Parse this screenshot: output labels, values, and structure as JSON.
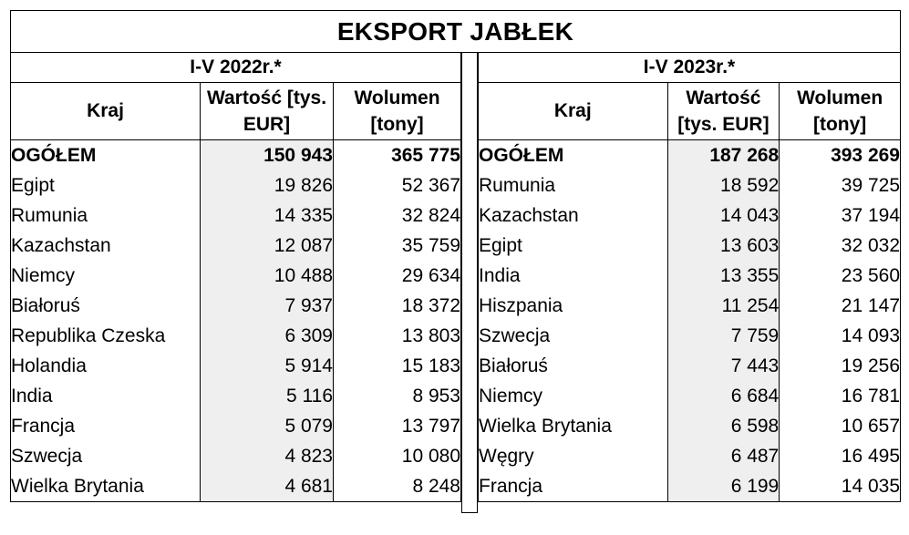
{
  "title": "EKSPORT JABŁEK",
  "left": {
    "period": "I-V 2022r.*",
    "headers": {
      "country": "Kraj",
      "value": "Wartość [tys. EUR]",
      "volume": "Wolumen [tony]"
    },
    "total": {
      "country": "OGÓŁEM",
      "value": "150 943",
      "volume": "365 775"
    },
    "rows": [
      {
        "country": "Egipt",
        "value": "19 826",
        "volume": "52 367"
      },
      {
        "country": "Rumunia",
        "value": "14 335",
        "volume": "32 824"
      },
      {
        "country": "Kazachstan",
        "value": "12 087",
        "volume": "35 759"
      },
      {
        "country": "Niemcy",
        "value": "10 488",
        "volume": "29 634"
      },
      {
        "country": "Białoruś",
        "value": "7 937",
        "volume": "18 372"
      },
      {
        "country": "Republika Czeska",
        "value": "6 309",
        "volume": "13 803"
      },
      {
        "country": "Holandia",
        "value": "5 914",
        "volume": "15 183"
      },
      {
        "country": "India",
        "value": "5 116",
        "volume": "8 953"
      },
      {
        "country": "Francja",
        "value": "5 079",
        "volume": "13 797"
      },
      {
        "country": "Szwecja",
        "value": "4 823",
        "volume": "10 080"
      },
      {
        "country": "Wielka Brytania",
        "value": "4 681",
        "volume": "8 248"
      }
    ]
  },
  "right": {
    "period": "I-V 2023r.*",
    "headers": {
      "country": "Kraj",
      "value": "Wartość [tys. EUR]",
      "volume": "Wolumen [tony]"
    },
    "total": {
      "country": "OGÓŁEM",
      "value": "187 268",
      "volume": "393 269"
    },
    "rows": [
      {
        "country": "Rumunia",
        "value": "18 592",
        "volume": "39 725"
      },
      {
        "country": "Kazachstan",
        "value": "14 043",
        "volume": "37 194"
      },
      {
        "country": "Egipt",
        "value": "13 603",
        "volume": "32 032"
      },
      {
        "country": "India",
        "value": "13 355",
        "volume": "23 560"
      },
      {
        "country": "Hiszpania",
        "value": "11 254",
        "volume": "21 147"
      },
      {
        "country": "Szwecja",
        "value": "7 759",
        "volume": "14 093"
      },
      {
        "country": "Białoruś",
        "value": "7 443",
        "volume": "19 256"
      },
      {
        "country": "Niemcy",
        "value": "6 684",
        "volume": "16 781"
      },
      {
        "country": "Wielka Brytania",
        "value": "6 598",
        "volume": "10 657"
      },
      {
        "country": "Węgry",
        "value": "6 487",
        "volume": "16 495"
      },
      {
        "country": "Francja",
        "value": "6 199",
        "volume": "14 035"
      }
    ]
  },
  "colors": {
    "value_column_shade": "#efefef",
    "border": "#000000"
  }
}
